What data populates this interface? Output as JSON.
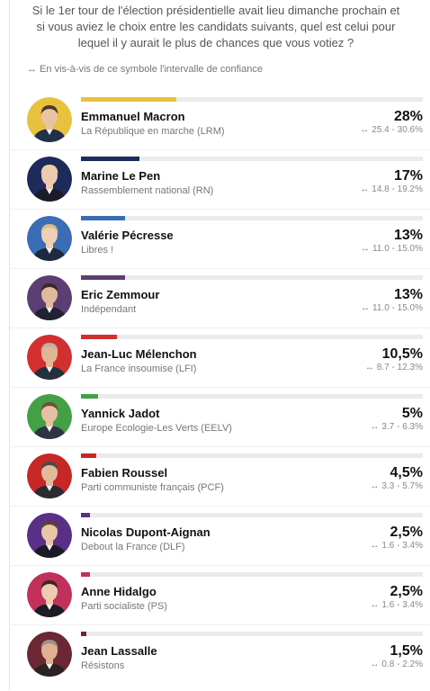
{
  "header": {
    "question": "Si le 1er tour de l'élection présidentielle avait lieu dimanche prochain et si vous aviez le choix entre les candidats suivants, quel est celui pour lequel il y aurait le plus de chances que vous votiez ?",
    "ci_note": "En vis-à-vis de ce symbole l'intervalle de confiance",
    "ci_icon": "double-arrow-icon"
  },
  "chart_data": {
    "type": "bar",
    "xlim": [
      0,
      100
    ],
    "categories": [
      "Emmanuel Macron",
      "Marine Le Pen",
      "Valérie Pécresse",
      "Eric Zemmour",
      "Jean-Luc Mélenchon",
      "Yannick Jadot",
      "Fabien Roussel",
      "Nicolas Dupont-Aignan",
      "Anne Hidalgo",
      "Jean Lassalle"
    ],
    "values": [
      28,
      17,
      13,
      13,
      10.5,
      5,
      4.5,
      2.5,
      2.5,
      1.5
    ],
    "candidates": [
      {
        "name": "Emmanuel Macron",
        "party": "La République en marche (LRM)",
        "value": 28,
        "label": "28%",
        "ci": "25.4 - 30.6%",
        "color": "#e8c13f",
        "avatar_bg": "#e8c13f",
        "skin": "#e8c3a6",
        "hair": "#4a3a2a",
        "suit": "#23304a"
      },
      {
        "name": "Marine Le Pen",
        "party": "Rassemblement national (RN)",
        "value": 17,
        "label": "17%",
        "ci": "14.8 - 19.2%",
        "color": "#1d2a5a",
        "avatar_bg": "#1d2a5a",
        "skin": "#ecc9b0",
        "hair": "#e7d39c",
        "suit": "#1b1b2a"
      },
      {
        "name": "Valérie Pécresse",
        "party": "Libres !",
        "value": 13,
        "label": "13%",
        "ci": "11.0 - 15.0%",
        "color": "#3a6db6",
        "avatar_bg": "#3a6db6",
        "skin": "#efcfb6",
        "hair": "#d9c089",
        "suit": "#1e2a3e"
      },
      {
        "name": "Eric Zemmour",
        "party": "Indépendant",
        "value": 13,
        "label": "13%",
        "ci": "11.0 - 15.0%",
        "color": "#5c3e72",
        "avatar_bg": "#5c3e72",
        "skin": "#e1b99c",
        "hair": "#3b2b25",
        "suit": "#222233"
      },
      {
        "name": "Jean-Luc Mélenchon",
        "party": "La France insoumise (LFI)",
        "value": 10.5,
        "label": "10,5%",
        "ci": "8.7 - 12.3%",
        "color": "#d32f2f",
        "avatar_bg": "#d32f2f",
        "skin": "#e2b596",
        "hair": "#b8b0a6",
        "suit": "#25303f"
      },
      {
        "name": "Yannick Jadot",
        "party": "Europe Ecologie-Les Verts (EELV)",
        "value": 5,
        "label": "5%",
        "ci": "3.7 - 6.3%",
        "color": "#43a047",
        "avatar_bg": "#43a047",
        "skin": "#e6c0a2",
        "hair": "#6b5238",
        "suit": "#2d3542"
      },
      {
        "name": "Fabien Roussel",
        "party": "Parti communiste français (PCF)",
        "value": 4.5,
        "label": "4,5%",
        "ci": "3.3 - 5.7%",
        "color": "#c62828",
        "avatar_bg": "#c62828",
        "skin": "#e4ba9c",
        "hair": "#4d4a47",
        "suit": "#2b2b33"
      },
      {
        "name": "Nicolas Dupont-Aignan",
        "party": "Debout la France (DLF)",
        "value": 2.5,
        "label": "2,5%",
        "ci": "1.6 - 3.4%",
        "color": "#5a2f86",
        "avatar_bg": "#5a2f86",
        "skin": "#ebc5a9",
        "hair": "#5b4330",
        "suit": "#1a1a28"
      },
      {
        "name": "Anne Hidalgo",
        "party": "Parti socialiste (PS)",
        "value": 2.5,
        "label": "2,5%",
        "ci": "1.6 - 3.4%",
        "color": "#c2305c",
        "avatar_bg": "#c2305c",
        "skin": "#efcbb2",
        "hair": "#3a2a22",
        "suit": "#1c1c26"
      },
      {
        "name": "Jean Lassalle",
        "party": "Résistons",
        "value": 1.5,
        "label": "1,5%",
        "ci": "0.8 - 2.2%",
        "color": "#6b2732",
        "avatar_bg": "#6b2732",
        "skin": "#dfb091",
        "hair": "#9a8f88",
        "suit": "#2c2222"
      }
    ]
  }
}
